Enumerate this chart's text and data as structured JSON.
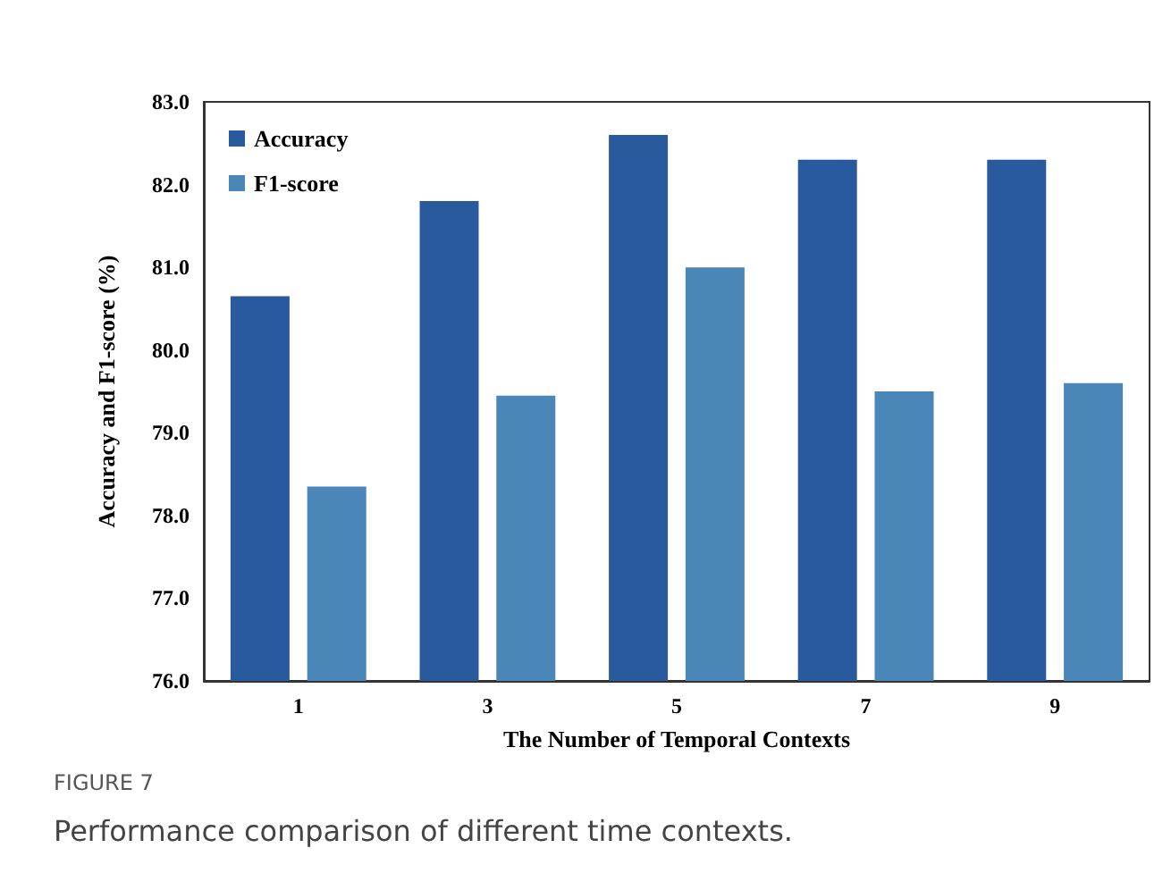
{
  "chart_data": {
    "type": "bar",
    "categories": [
      "1",
      "3",
      "5",
      "7",
      "9"
    ],
    "series": [
      {
        "name": "Accuracy",
        "color": "#2a5a9e",
        "values": [
          80.65,
          81.8,
          82.6,
          82.3,
          82.3
        ]
      },
      {
        "name": "F1-score",
        "color": "#4a86b8",
        "values": [
          78.35,
          79.45,
          81.0,
          79.5,
          79.6
        ]
      }
    ],
    "xlabel": "The Number of Temporal Contexts",
    "ylabel": "Accuracy and F1-score (%)",
    "ylim": [
      76,
      83
    ],
    "yticks": [
      {
        "value": 76,
        "label": "76.0"
      },
      {
        "value": 77,
        "label": "77.0"
      },
      {
        "value": 78,
        "label": "78.0"
      },
      {
        "value": 79,
        "label": "79.0"
      },
      {
        "value": 80,
        "label": "80.0"
      },
      {
        "value": 81,
        "label": "81.0"
      },
      {
        "value": 82,
        "label": "82.0"
      },
      {
        "value": 83,
        "label": "83.0"
      }
    ],
    "grid": false,
    "legend": "top left",
    "annotations": [
      "FIGURE 7",
      "Performance comparison of different time contexts."
    ]
  }
}
